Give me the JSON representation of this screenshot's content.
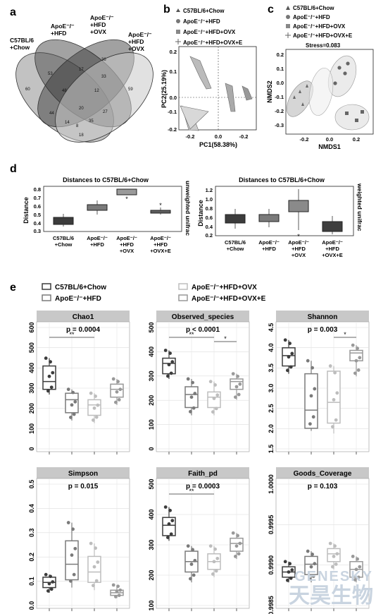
{
  "panels": {
    "a": {
      "label": "a",
      "groups": [
        "C57BL/6\n+Chow",
        "ApoE⁻/⁻\n+HFD",
        "ApoE⁻/⁻\n+HFD\n+OVX",
        "ApoE⁻/⁻\n+HFD\n+OVX"
      ],
      "counts": [
        "60",
        "53",
        "17",
        "36",
        "59",
        "48",
        "20",
        "12",
        "33",
        "44",
        "14",
        "35",
        "27",
        "18",
        "8"
      ]
    },
    "b": {
      "label": "b",
      "legend": [
        "C57BL/6+Chow",
        "ApoE⁻/⁻+HFD",
        "ApoE⁻/⁻+HFD+OVX",
        "ApoE⁻/⁻+HFD+OVX+E"
      ],
      "xlabel": "PC1(58.38%)",
      "ylabel": "PC2(25.19%)",
      "xticks": [
        "-0.2",
        "0.0",
        "-0.2"
      ],
      "yticks": [
        "0.2",
        "0.1",
        "0.0",
        "-0.1",
        "-0.2"
      ]
    },
    "c": {
      "label": "c",
      "legend": [
        "C57BL/6+Chow",
        "ApoE⁻/⁻+HFD",
        "ApoE⁻/⁻+HFD+OVX",
        "ApoE⁻/⁻+HFD+OVX+E"
      ],
      "stress": "Stress=0.083",
      "xlabel": "NMDS1",
      "ylabel": "NMDS2",
      "xticks": [
        "-0.2",
        "0.0",
        "0.2"
      ],
      "yticks": [
        "0.2",
        "0.1",
        "0.0",
        "-0.1",
        "-0.2",
        "-0.3"
      ]
    },
    "d": {
      "label": "d",
      "charts": [
        {
          "title": "Distances to C57BL/6+Chow",
          "side_label": "unweighted unifrac",
          "ylabel": "Distance",
          "yticks": [
            "0.8",
            "0.7",
            "0.6",
            "0.5",
            "0.4",
            "0.3"
          ],
          "categories": [
            "C57BL/6\n+Chow",
            "ApoE⁻/⁻\n+HFD",
            "ApoE⁻/⁻\n+HFD\n+OVX",
            "ApoE⁻/⁻\n+HFD\n+OVX+E"
          ],
          "stars": [
            "",
            "",
            "*",
            "*"
          ]
        },
        {
          "title": "Distances to C57BL/6+Chow",
          "side_label": "weighted unifrac",
          "ylabel": "Distance",
          "yticks": [
            "1.2",
            "1.0",
            "0.8",
            "0.6",
            "0.4",
            "0.2"
          ],
          "categories": [
            "C57BL/6\n+Chow",
            "ApoE⁻/⁻\n+HFD",
            "ApoE⁻/⁻\n+HFD\n+OVX",
            "ApoE⁻/⁻\n+HFD\n+OVX+E"
          ],
          "stars": [
            "",
            "",
            "*",
            ""
          ]
        }
      ]
    },
    "e": {
      "label": "e",
      "legend": [
        "C57BL/6+Chow",
        "ApoE⁻/⁻+HFD",
        "ApoE⁻/⁻+HFD+OVX",
        "ApoE⁻/⁻+HFD+OVX+E"
      ],
      "facets": [
        {
          "title": "Chao1",
          "p": "p = 0.0004",
          "yticks": [
            "600",
            "500",
            "400",
            "300",
            "200",
            "100",
            "0"
          ],
          "sig": [
            {
              "label": "**"
            }
          ]
        },
        {
          "title": "Observed_species",
          "p": "p < 0.0001",
          "yticks": [
            "500",
            "400",
            "300",
            "200",
            "100",
            "0"
          ],
          "sig": [
            {
              "label": "**"
            },
            {
              "label": "*"
            }
          ]
        },
        {
          "title": "Shannon",
          "p": "p = 0.003",
          "yticks": [
            "4.5",
            "4.0",
            "3.5",
            "3.0",
            "2.5",
            "2.0",
            "1.5"
          ],
          "sig": [
            {
              "label": "*"
            }
          ]
        },
        {
          "title": "Simpson",
          "p": "p = 0.015",
          "yticks": [
            "0.5",
            "0.4",
            "0.3",
            "0.2",
            "0.1",
            "0.0"
          ],
          "sig": []
        },
        {
          "title": "Faith_pd",
          "p": "p = 0.0003",
          "yticks": [
            "500",
            "400",
            "300",
            "200",
            "100"
          ],
          "sig": [
            {
              "label": "**"
            }
          ]
        },
        {
          "title": "Goods_Coverage",
          "p": "p = 0.103",
          "yticks": [
            "1.0000",
            "0.9995",
            "0.9990",
            "0.9985"
          ],
          "sig": []
        }
      ]
    }
  },
  "watermark": {
    "en": "GENESKY",
    "cn": "天昊生物"
  },
  "colors": {
    "g1": "#3c3c3c",
    "g2": "#7a7a7a",
    "g3": "#bdbdbd",
    "g4": "#999999"
  }
}
